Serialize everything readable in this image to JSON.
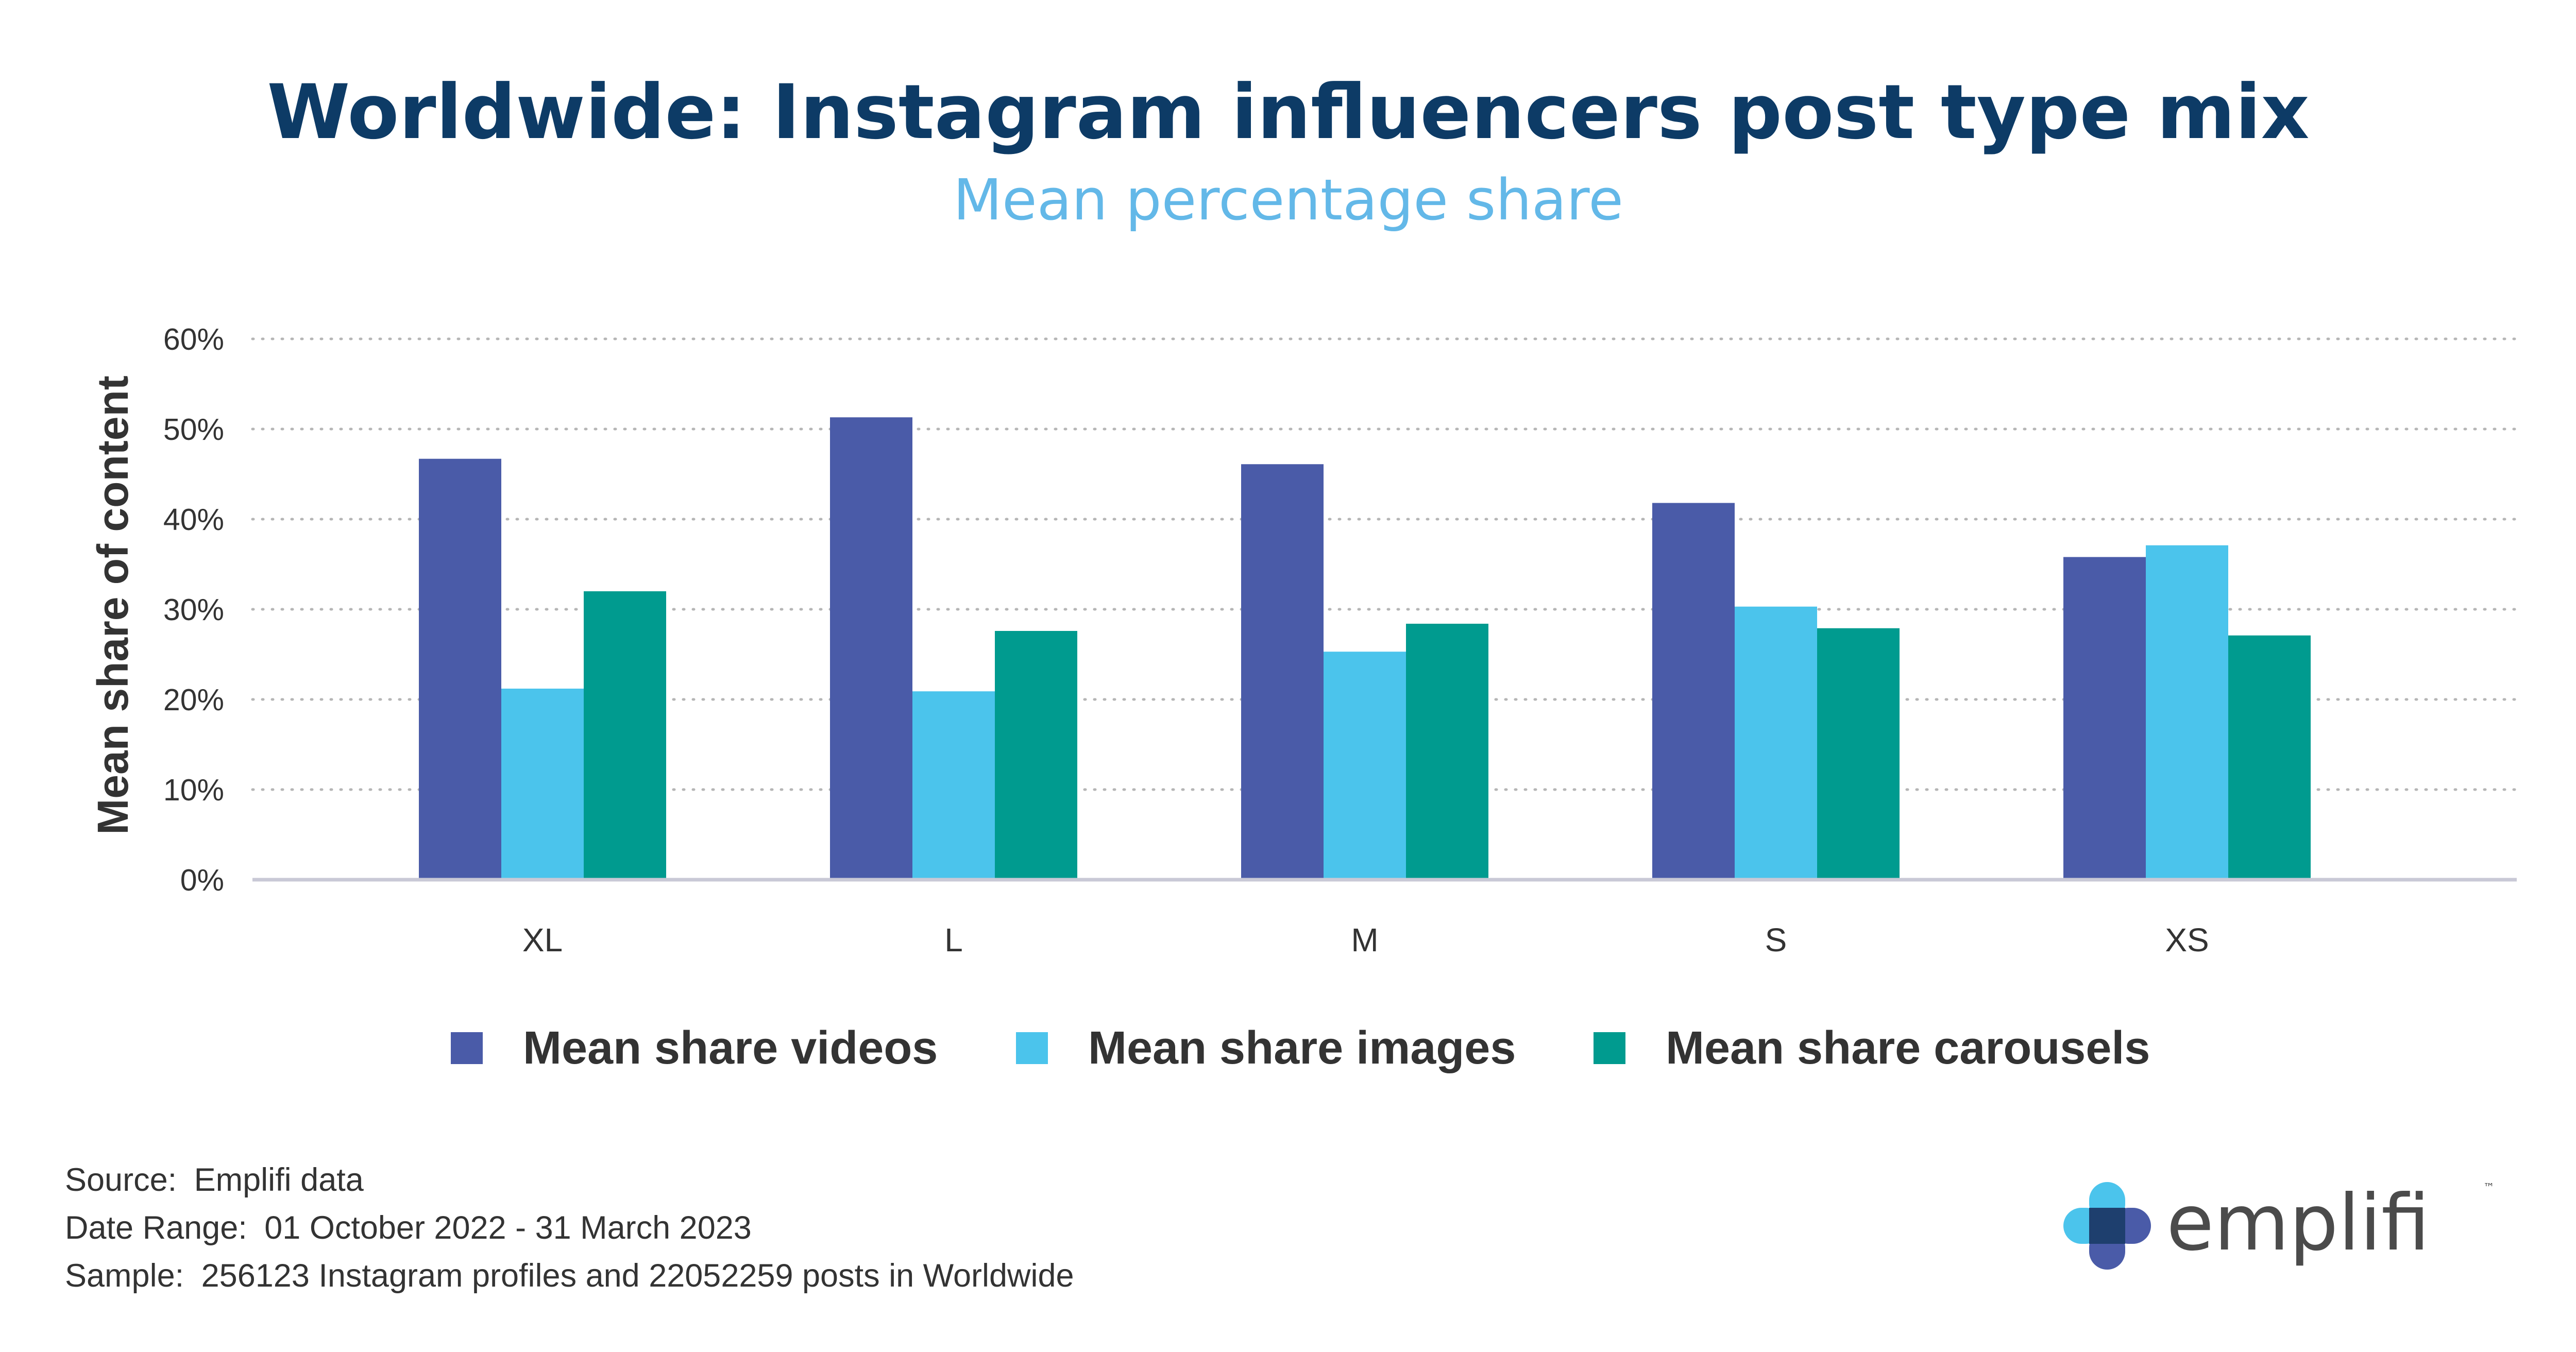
{
  "header": {
    "title": "Worldwide: Instagram influencers post type mix",
    "subtitle": "Mean percentage share"
  },
  "chart_data": {
    "type": "bar",
    "title": "Worldwide: Instagram influencers post type mix",
    "subtitle": "Mean percentage share",
    "xlabel": "",
    "ylabel": "Mean share of content",
    "categories": [
      "XL",
      "L",
      "M",
      "S",
      "XS"
    ],
    "series": [
      {
        "name": "Mean share videos",
        "color": "#4a5ba8",
        "values": [
          46.7,
          51.3,
          46.1,
          41.8,
          35.8
        ]
      },
      {
        "name": "Mean share images",
        "color": "#4bc4ec",
        "values": [
          21.2,
          20.9,
          25.3,
          30.3,
          37.1
        ]
      },
      {
        "name": "Mean share carousels",
        "color": "#009b8f",
        "values": [
          32.0,
          27.6,
          28.4,
          27.9,
          27.1
        ]
      }
    ],
    "ylim": [
      0,
      60
    ],
    "yticks": [
      0,
      10,
      20,
      30,
      40,
      50,
      60
    ],
    "ytick_labels": [
      "0%",
      "10%",
      "20%",
      "30%",
      "40%",
      "50%",
      "60%"
    ],
    "grid": true,
    "grid_style": "dotted",
    "legend": "bottom"
  },
  "footer": {
    "source_label": "Source:",
    "source_value": "Emplifi data",
    "date_label": "Date Range:",
    "date_value": "01 October 2022 - 31 March 2023",
    "sample_label": "Sample:",
    "sample_value": "256123 Instagram profiles and 22052259 posts in Worldwide"
  },
  "brand": {
    "name": "emplifi",
    "tm": "™",
    "colors": [
      "#4bc4ec",
      "#4a5ba8",
      "#1e3f6e"
    ]
  }
}
